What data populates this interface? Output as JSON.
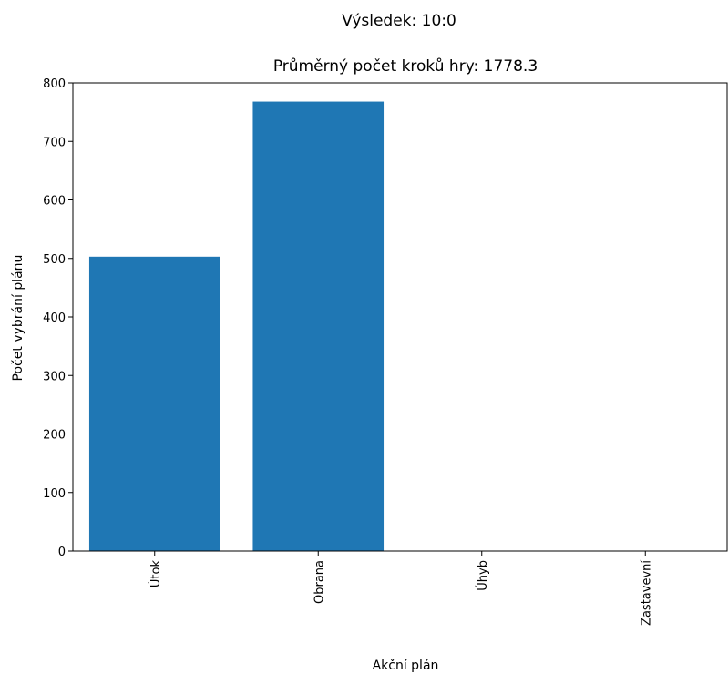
{
  "chart_data": {
    "type": "bar",
    "suptitle": "Výsledek: 10:0",
    "title": "Průměrný počet kroků hry: 1778.3",
    "xlabel": "Akční plán",
    "ylabel": "Počet vybrání plánu",
    "categories": [
      "Útok",
      "Obrana",
      "Úhyb",
      "Zastavevní"
    ],
    "values": [
      503,
      768,
      0,
      0
    ],
    "ylim": [
      0,
      800
    ],
    "yticks": [
      0,
      100,
      200,
      300,
      400,
      500,
      600,
      700,
      800
    ],
    "bar_color": "#1f77b4",
    "grid": false,
    "legend": false,
    "xtick_rotation": "vertical"
  }
}
